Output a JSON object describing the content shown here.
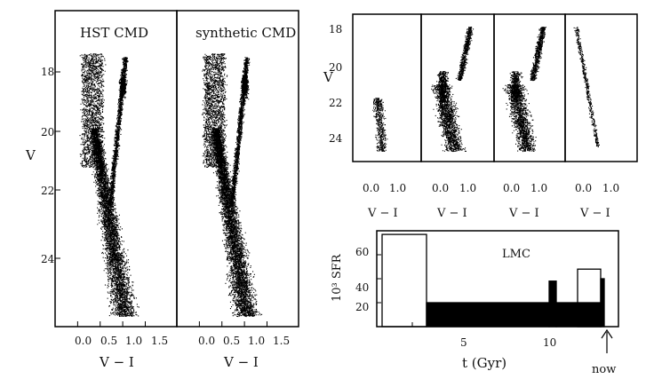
{
  "figure": {
    "left_panel": {
      "titles": [
        "HST CMD",
        "synthetic CMD"
      ],
      "ylabel": "V",
      "yticks": [
        "18",
        "20",
        "22",
        "24"
      ],
      "xticks": [
        "0.0",
        "0.5",
        "1.0",
        "1.5"
      ],
      "xlabel": "V − I"
    },
    "small_panels": {
      "ylabel": "V",
      "yticks": [
        "18",
        "20",
        "22",
        "24"
      ],
      "xticks": [
        "0.0",
        "1.0"
      ],
      "xlabel": "V − I"
    },
    "sfr_panel": {
      "label": "LMC",
      "ylabel": "10³ SFR",
      "yticks": [
        "60",
        "40",
        "20"
      ],
      "xticks": [
        "5",
        "10"
      ],
      "xlabel": "t (Gyr)",
      "arrow_label": "now"
    }
  },
  "chart_data": [
    {
      "type": "scatter",
      "title": "HST CMD",
      "xlabel": "V − I",
      "ylabel": "V",
      "xlim": [
        -0.5,
        2.2
      ],
      "ylim": [
        25.8,
        16.9
      ],
      "y_inverted": true
    },
    {
      "type": "scatter",
      "title": "synthetic CMD",
      "xlabel": "V − I",
      "ylabel": "V",
      "xlim": [
        -0.5,
        2.2
      ],
      "ylim": [
        25.8,
        16.9
      ],
      "y_inverted": true
    },
    {
      "type": "bar",
      "title": "LMC",
      "xlabel": "t (Gyr)",
      "ylabel": "10³ SFR",
      "xlim": [
        0,
        13.6
      ],
      "ylim": [
        0,
        80
      ],
      "series": [
        {
          "name": "",
          "style": "outline",
          "bins": [
            {
              "x0": 0.3,
              "x1": 2.8,
              "y": 77
            },
            {
              "x0": 11.3,
              "x1": 12.6,
              "y": 48
            }
          ]
        },
        {
          "name": "",
          "style": "filled",
          "bins": [
            {
              "x0": 2.8,
              "x1": 9.7,
              "y": 20
            },
            {
              "x0": 9.7,
              "x1": 10.1,
              "y": 38
            },
            {
              "x0": 10.1,
              "x1": 12.6,
              "y": 20
            },
            {
              "x0": 12.6,
              "x1": 12.8,
              "y": 40
            }
          ]
        }
      ]
    }
  ]
}
